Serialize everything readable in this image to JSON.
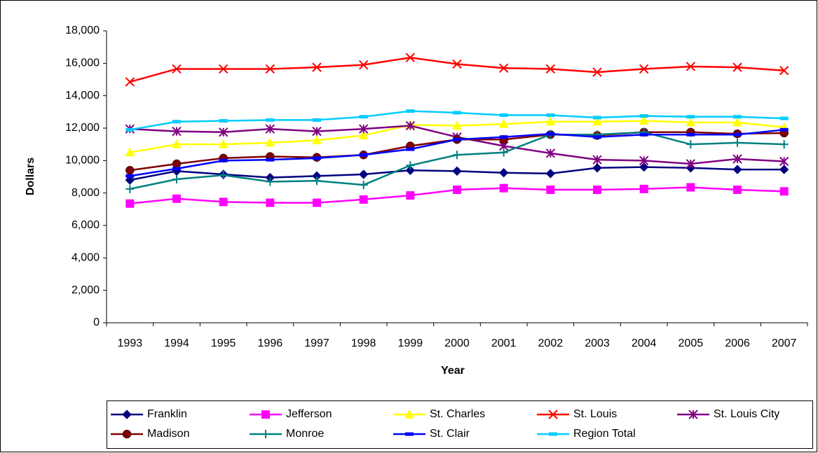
{
  "chart_data": {
    "type": "line",
    "x_label": "Year",
    "y_label": "Dollars",
    "categories": [
      "1993",
      "1994",
      "1995",
      "1996",
      "1997",
      "1998",
      "1999",
      "2000",
      "2001",
      "2002",
      "2003",
      "2004",
      "2005",
      "2006",
      "2007"
    ],
    "ylim": [
      0,
      18000
    ],
    "yticks": [
      0,
      {
        "value": 2000,
        "label": "2,000"
      },
      {
        "value": 4000,
        "label": "4,000"
      },
      {
        "value": 6000,
        "label": "6,000"
      },
      {
        "value": 8000,
        "label": "8,000"
      },
      {
        "value": 10000,
        "label": "10,000"
      },
      {
        "value": 12000,
        "label": "12,000"
      },
      {
        "value": 14000,
        "label": "14,000"
      },
      {
        "value": 16000,
        "label": "16,000"
      },
      {
        "value": 18000,
        "label": "18,000"
      }
    ],
    "grid": false,
    "legend": "bottom",
    "series": [
      {
        "name": "Franklin",
        "color": "#000080",
        "marker": "diamond",
        "values": [
          8800,
          9350,
          9150,
          8950,
          9050,
          9150,
          9400,
          9350,
          9250,
          9200,
          9550,
          9600,
          9550,
          9450,
          9450
        ]
      },
      {
        "name": "Jefferson",
        "color": "#FF00FF",
        "marker": "square",
        "values": [
          7350,
          7650,
          7450,
          7400,
          7400,
          7600,
          7850,
          8200,
          8300,
          8200,
          8200,
          8250,
          8350,
          8200,
          8100
        ]
      },
      {
        "name": "St. Charles",
        "color": "#FFFF00",
        "marker": "triangle",
        "values": [
          10500,
          11000,
          11000,
          11100,
          11250,
          11550,
          12200,
          12150,
          12250,
          12400,
          12400,
          12450,
          12350,
          12350,
          12050
        ]
      },
      {
        "name": "St. Louis",
        "color": "#FF0000",
        "marker": "x",
        "values": [
          14850,
          15650,
          15650,
          15650,
          15750,
          15900,
          16350,
          15950,
          15700,
          15650,
          15450,
          15650,
          15800,
          15750,
          15550
        ]
      },
      {
        "name": "St. Louis City",
        "color": "#800080",
        "marker": "star",
        "values": [
          11950,
          11800,
          11750,
          11950,
          11800,
          11950,
          12150,
          11450,
          10900,
          10450,
          10050,
          10000,
          9800,
          10100,
          9950
        ]
      },
      {
        "name": "Madison",
        "color": "#800000",
        "marker": "circle",
        "values": [
          9400,
          9800,
          10150,
          10250,
          10200,
          10350,
          10900,
          11300,
          11300,
          11600,
          11550,
          11750,
          11750,
          11650,
          11700
        ]
      },
      {
        "name": "Monroe",
        "color": "#008080",
        "marker": "plus",
        "values": [
          8250,
          8850,
          9100,
          8700,
          8750,
          8500,
          9700,
          10350,
          10500,
          11600,
          11600,
          11750,
          11000,
          11100,
          11000
        ]
      },
      {
        "name": "St. Clair",
        "color": "#0000FF",
        "marker": "dash",
        "values": [
          9050,
          9500,
          10000,
          10050,
          10150,
          10350,
          10700,
          11300,
          11450,
          11650,
          11450,
          11600,
          11600,
          11600,
          11900
        ]
      },
      {
        "name": "Region Total",
        "color": "#00CCFF",
        "marker": "dash",
        "values": [
          11900,
          12400,
          12450,
          12500,
          12500,
          12700,
          13050,
          12950,
          12800,
          12800,
          12650,
          12750,
          12700,
          12700,
          12600
        ]
      }
    ]
  }
}
